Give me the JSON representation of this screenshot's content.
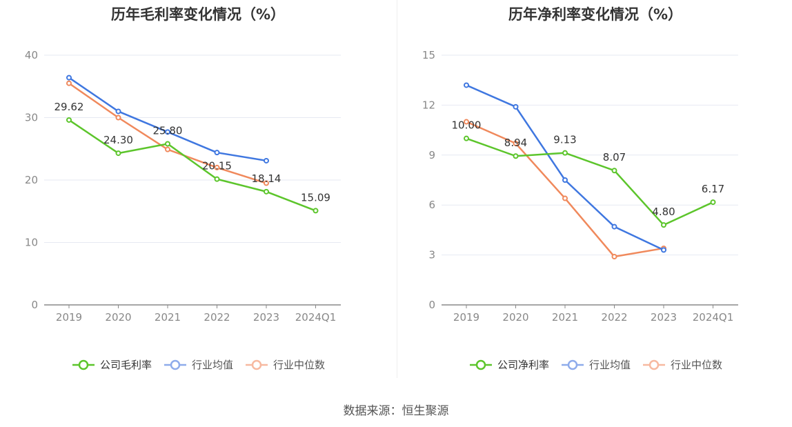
{
  "chart_data": [
    {
      "type": "line",
      "title": "历年毛利率变化情况（%）",
      "categories": [
        "2019",
        "2020",
        "2021",
        "2022",
        "2023",
        "2024Q1"
      ],
      "ylim": [
        0,
        40
      ],
      "yticks": [
        "0",
        "10",
        "20",
        "30",
        "40"
      ],
      "grid": true,
      "legend_position": "bottom",
      "series": [
        {
          "name": "公司毛利率",
          "color": "#5cc52b",
          "values": [
            29.62,
            24.3,
            25.8,
            20.15,
            18.14,
            15.09
          ],
          "labels": [
            "29.62",
            "24.30",
            "25.80",
            "20.15",
            "18.14",
            "15.09"
          ]
        },
        {
          "name": "行业均值",
          "color": "#3f77e0",
          "values": [
            36.4,
            31.0,
            27.7,
            24.4,
            23.1,
            null
          ]
        },
        {
          "name": "行业中位数",
          "color": "#f0895c",
          "values": [
            35.5,
            30.0,
            24.9,
            22.0,
            19.5,
            null
          ]
        }
      ]
    },
    {
      "type": "line",
      "title": "历年净利率变化情况（%）",
      "categories": [
        "2019",
        "2020",
        "2021",
        "2022",
        "2023",
        "2024Q1"
      ],
      "ylim": [
        0,
        15
      ],
      "yticks": [
        "0",
        "3",
        "6",
        "9",
        "12",
        "15"
      ],
      "grid": true,
      "legend_position": "bottom",
      "series": [
        {
          "name": "公司净利率",
          "color": "#5cc52b",
          "values": [
            10.0,
            8.94,
            9.13,
            8.07,
            4.8,
            6.17
          ],
          "labels": [
            "10.00",
            "8.94",
            "9.13",
            "8.07",
            "4.80",
            "6.17"
          ]
        },
        {
          "name": "行业均值",
          "color": "#3f77e0",
          "values": [
            13.2,
            11.9,
            7.5,
            4.7,
            3.3,
            null
          ]
        },
        {
          "name": "行业中位数",
          "color": "#f0895c",
          "values": [
            11.0,
            9.7,
            6.4,
            2.9,
            3.4,
            null
          ]
        }
      ]
    }
  ],
  "source": "数据来源：恒生聚源"
}
